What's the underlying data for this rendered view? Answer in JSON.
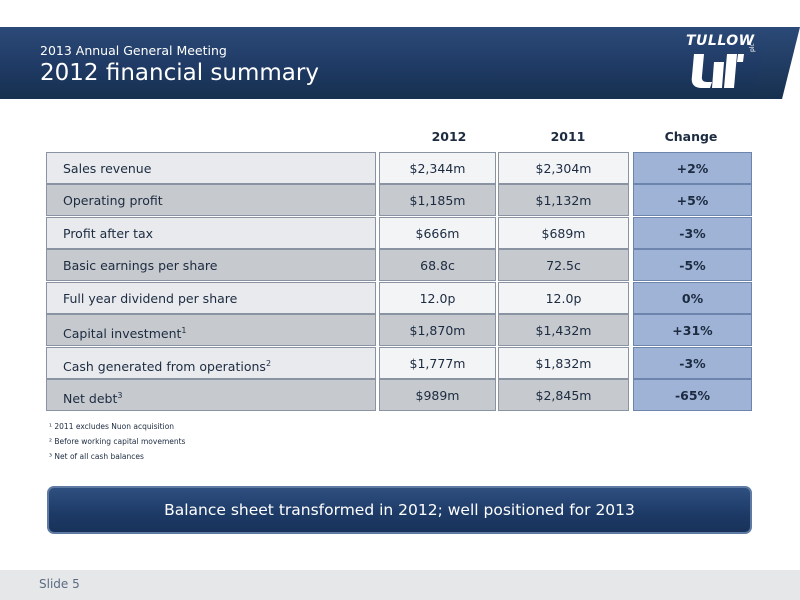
{
  "header": {
    "subtitle": "2013 Annual General Meeting",
    "title": "2012 financial summary",
    "logo_text": "TULLOW",
    "logo_suffix": "plc"
  },
  "table": {
    "columns": [
      "2012",
      "2011",
      "Change"
    ],
    "rows": [
      {
        "label": "Sales revenue",
        "sup": "",
        "v2012": "$2,344m",
        "v2011": "$2,304m",
        "change": "+2%"
      },
      {
        "label": "Operating profit",
        "sup": "",
        "v2012": "$1,185m",
        "v2011": "$1,132m",
        "change": "+5%"
      },
      {
        "label": "Profit after tax",
        "sup": "",
        "v2012": "$666m",
        "v2011": "$689m",
        "change": "-3%"
      },
      {
        "label": "Basic earnings per share",
        "sup": "",
        "v2012": "68.8c",
        "v2011": "72.5c",
        "change": "-5%"
      },
      {
        "label": "Full year dividend per share",
        "sup": "",
        "v2012": "12.0p",
        "v2011": "12.0p",
        "change": "0%"
      },
      {
        "label": "Capital investment",
        "sup": "1",
        "v2012": "$1,870m",
        "v2011": "$1,432m",
        "change": "+31%"
      },
      {
        "label": "Cash generated from operations",
        "sup": "2",
        "v2012": "$1,777m",
        "v2011": "$1,832m",
        "change": "-3%"
      },
      {
        "label": "Net debt",
        "sup": "3",
        "v2012": "$989m",
        "v2011": "$2,845m",
        "change": "-65%"
      }
    ]
  },
  "footnotes": [
    "¹  2011 excludes Nuon acquisition",
    "² Before working capital movements",
    "³  Net of all cash balances"
  ],
  "banner": "Balance sheet transformed in 2012; well positioned for 2013",
  "footer": {
    "slide_label": "Slide 5"
  }
}
